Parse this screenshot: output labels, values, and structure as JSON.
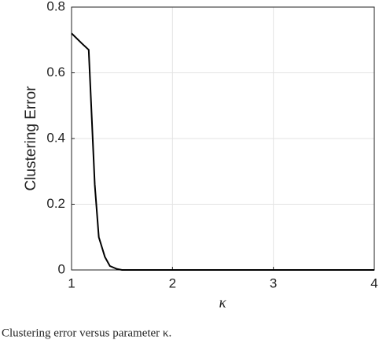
{
  "chart_data": {
    "type": "line",
    "x_label": "κ",
    "y_label": "Clustering Error",
    "caption": "Clustering error versus parameter κ.",
    "x": [
      1,
      1.1,
      1.17,
      1.23,
      1.27,
      1.33,
      1.38,
      1.45,
      1.5,
      2,
      2.5,
      3,
      3.5,
      4
    ],
    "series": [
      {
        "color": "#000000",
        "values": [
          0.72,
          0.69,
          0.67,
          0.26,
          0.1,
          0.04,
          0.012,
          0.003,
          0,
          0,
          0,
          0,
          0,
          0
        ]
      }
    ],
    "xlim": [
      1,
      4
    ],
    "ylim": [
      0,
      0.8
    ],
    "xticks": [
      1,
      2,
      3,
      4
    ],
    "yticks": [
      0,
      0.2,
      0.4,
      0.6,
      0.8
    ],
    "grid": true
  }
}
